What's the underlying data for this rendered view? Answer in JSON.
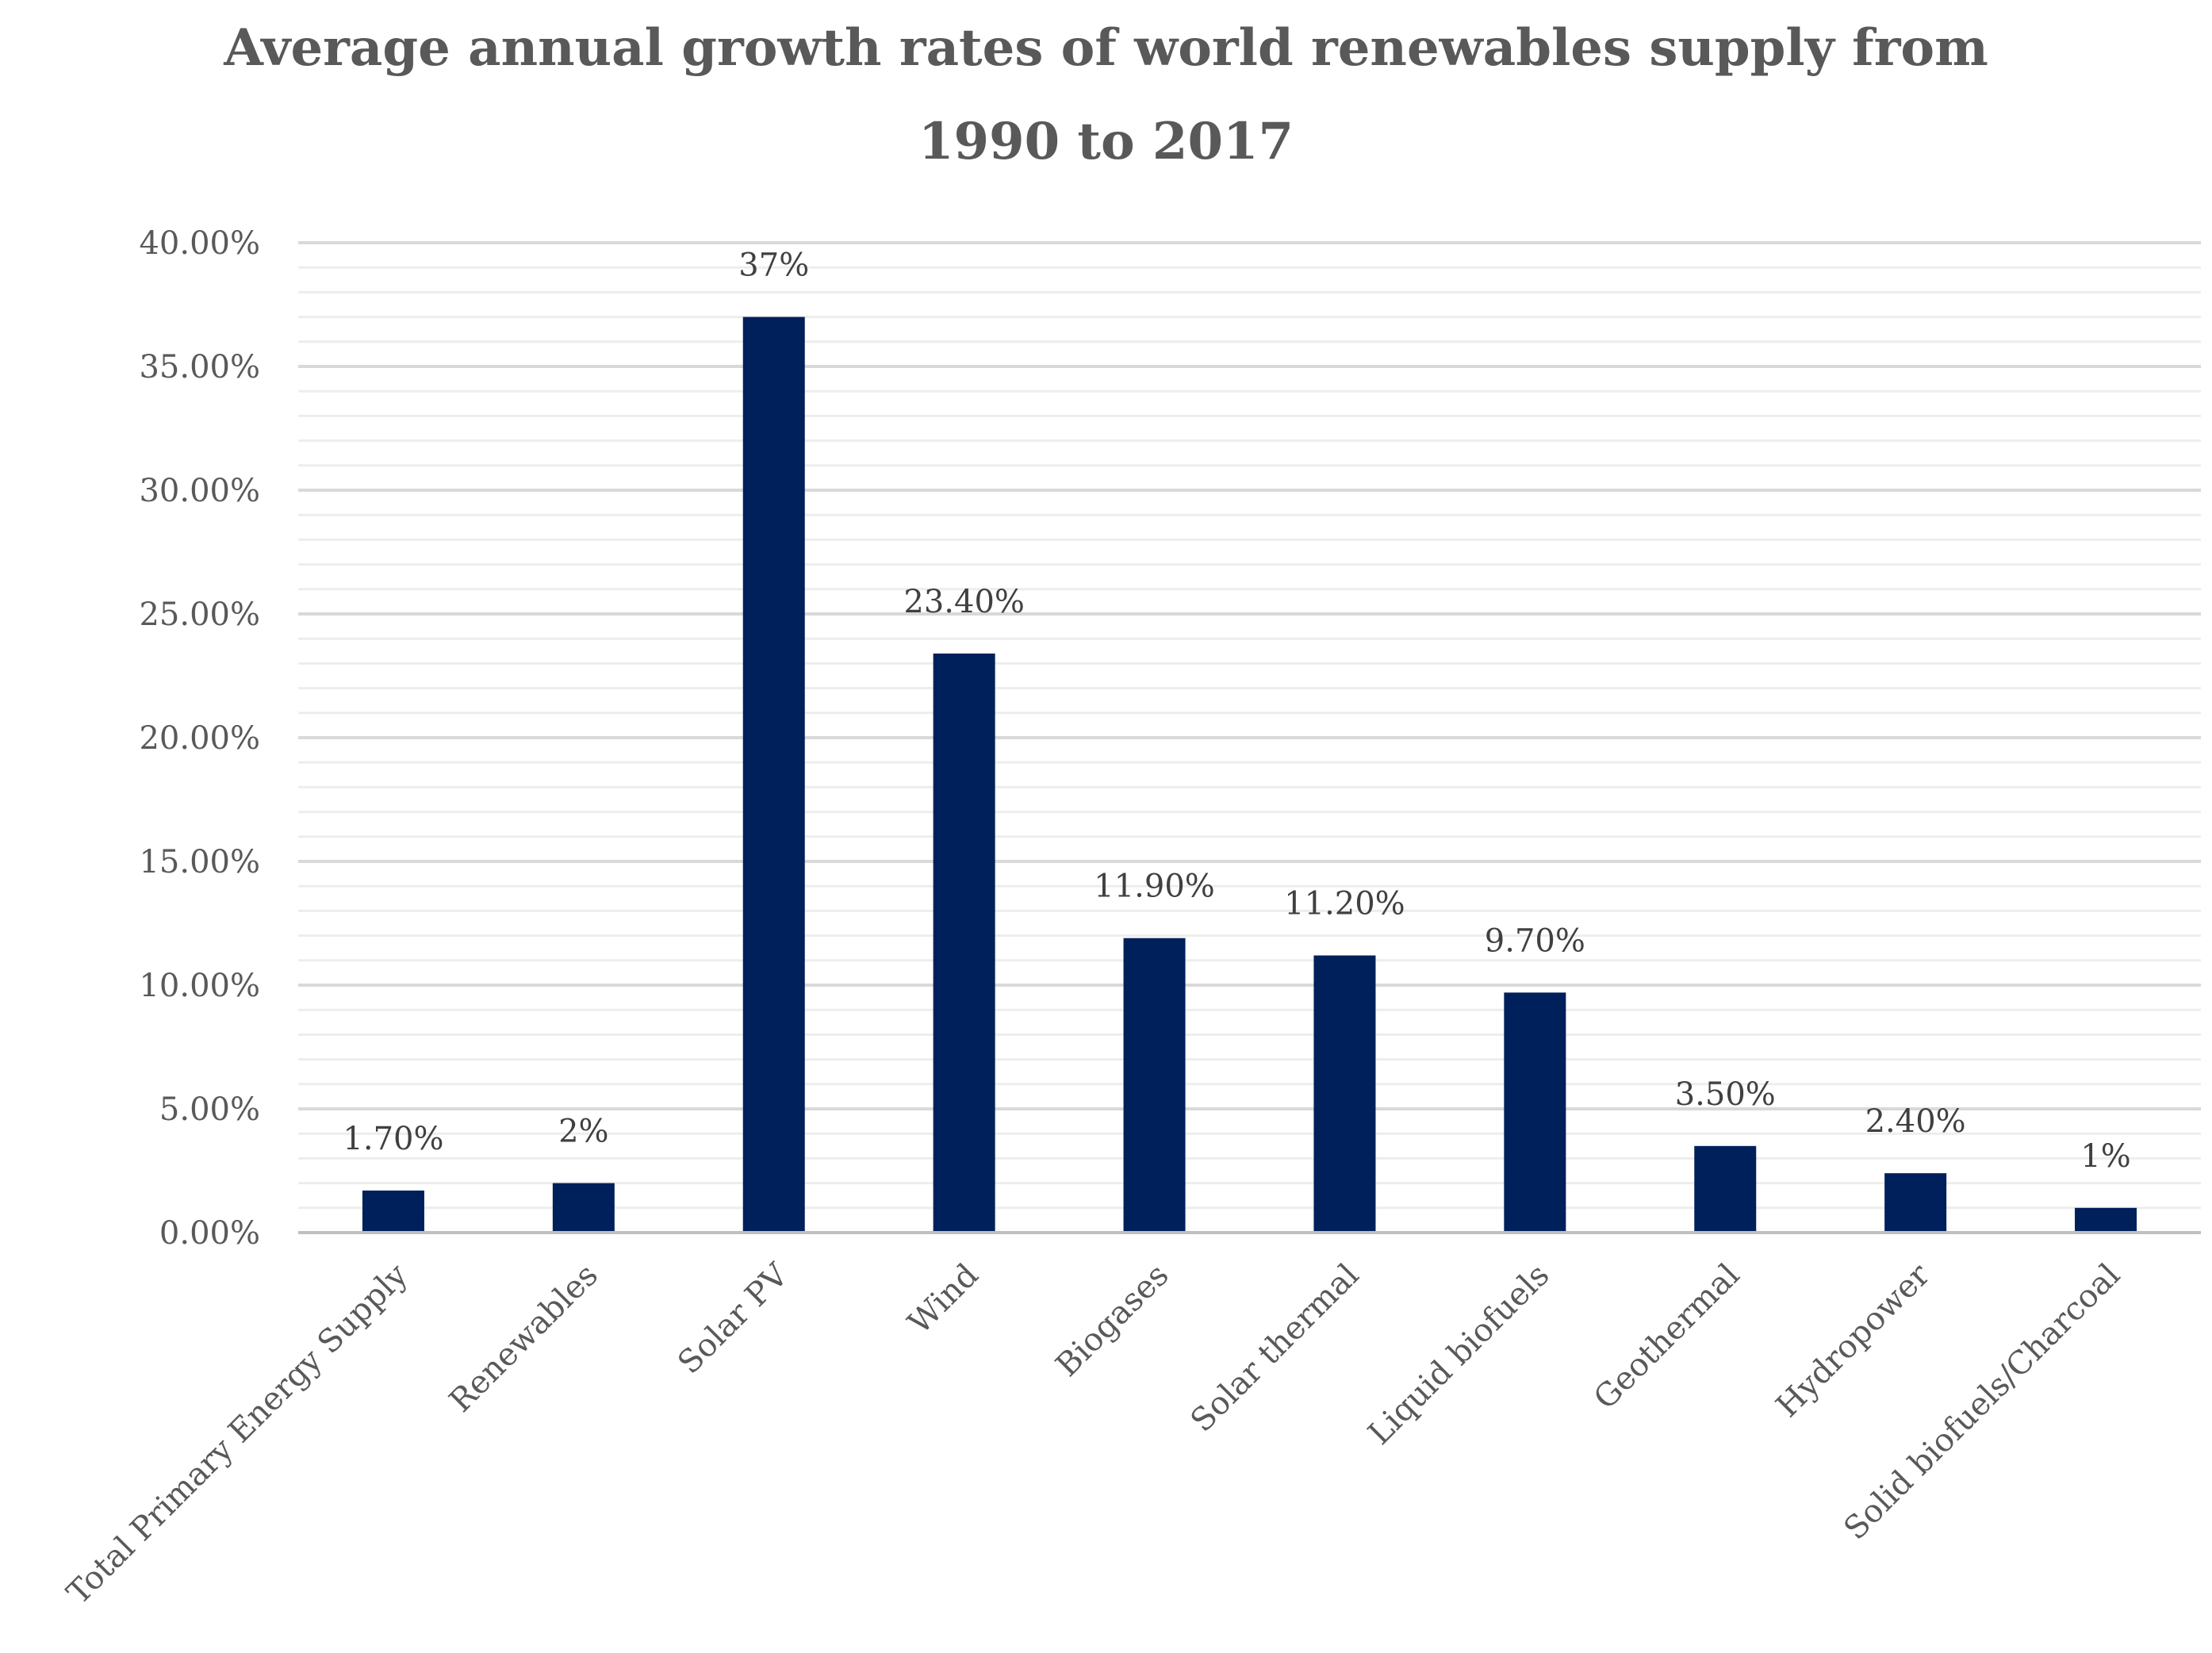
{
  "chart_data": {
    "type": "bar",
    "title_lines": [
      "Average annual growth rates of world renewables supply from",
      "1990 to 2017"
    ],
    "title": "Average annual growth rates of world renewables supply from 1990 to 2017",
    "xlabel": "",
    "ylabel": "",
    "ylim": [
      0,
      40
    ],
    "yticks": [
      0,
      5,
      10,
      15,
      20,
      25,
      30,
      35,
      40
    ],
    "ytick_labels": [
      "0.00%",
      "5.00%",
      "10.00%",
      "15.00%",
      "20.00%",
      "25.00%",
      "30.00%",
      "35.00%",
      "40.00%"
    ],
    "minor_grid_step": 1,
    "grid": true,
    "legend": "none",
    "categories": [
      "Total Primary Energy Supply",
      "Renewables",
      "Solar PV",
      "Wind",
      "Biogases",
      "Solar thermal",
      "Liquid biofuels",
      "Geothermal",
      "Hydropower",
      "Solid biofuels/Charcoal"
    ],
    "values": [
      1.7,
      2,
      37,
      23.4,
      11.9,
      11.2,
      9.7,
      3.5,
      2.4,
      1
    ],
    "data_labels": [
      "1.70%",
      "2%",
      "37%",
      "23.40%",
      "11.90%",
      "11.20%",
      "9.70%",
      "3.50%",
      "2.40%",
      "1%"
    ],
    "bar_color": "#00205b",
    "major_grid_color": "#d9d9d9",
    "minor_grid_color": "#ededed",
    "axis_color": "#bfbfbf"
  }
}
